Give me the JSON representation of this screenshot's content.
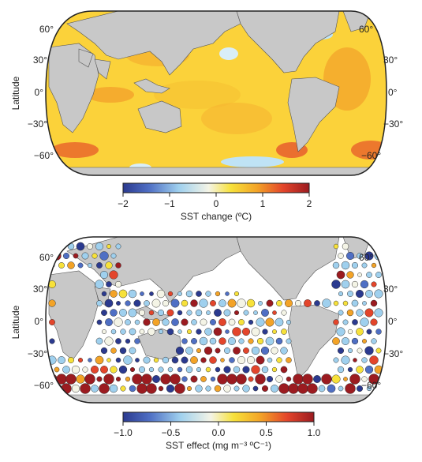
{
  "panels": [
    {
      "id": "sst-change",
      "ylabel": "Latitude",
      "lat_ticks_left": [
        "60°",
        "30°",
        "0°",
        "−30°",
        "−60°"
      ],
      "lat_ticks_right": [
        "60°",
        "30°",
        "0°",
        "−30°",
        "−60°"
      ],
      "colorbar": {
        "ticks": [
          "−2",
          "−1",
          "0",
          "1",
          "2"
        ],
        "range": [
          -2,
          2
        ],
        "label": "SST change (ºC)"
      }
    },
    {
      "id": "sst-effect",
      "ylabel": "Latitude",
      "lat_ticks_left": [
        "60°",
        "30°",
        "0°",
        "−30°",
        "−60°"
      ],
      "lat_ticks_right": [
        "60°",
        "30°",
        "0°",
        "−30°",
        "−60°"
      ],
      "colorbar": {
        "ticks": [
          "−1.0",
          "−0.5",
          "0.0",
          "0.5",
          "1.0"
        ],
        "range": [
          -1,
          1
        ],
        "label": "SST effect (mg m⁻³ ºC⁻¹)"
      }
    }
  ],
  "colors": {
    "land": "#c8c8c8",
    "ocean_warm": "#fbd23a",
    "colormap": [
      "#2b3a8f",
      "#4f6fc4",
      "#9fd0ee",
      "#f4f4e6",
      "#f7e13a",
      "#f3a327",
      "#e3452b",
      "#9b1b20"
    ]
  }
}
